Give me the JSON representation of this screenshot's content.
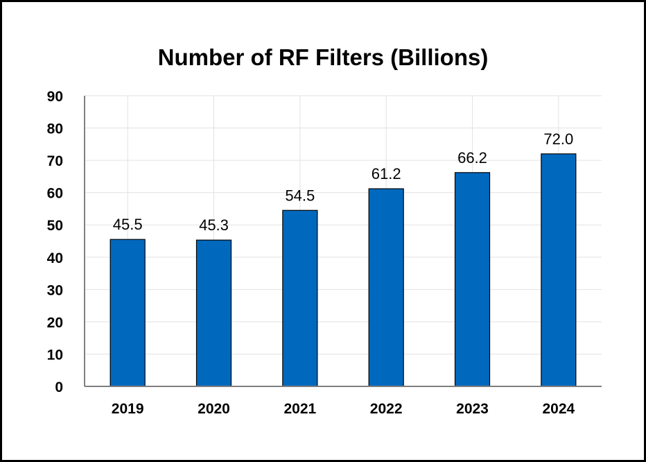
{
  "chart_data": {
    "type": "bar",
    "title": "Number of RF Filters (Billions)",
    "xlabel": "",
    "ylabel": "",
    "categories": [
      "2019",
      "2020",
      "2021",
      "2022",
      "2023",
      "2024"
    ],
    "values": [
      45.5,
      45.3,
      54.5,
      61.2,
      66.2,
      72.0
    ],
    "data_labels": [
      "45.5",
      "45.3",
      "54.5",
      "61.2",
      "66.2",
      "72.0"
    ],
    "ylim": [
      0,
      90
    ],
    "yticks": [
      0,
      10,
      20,
      30,
      40,
      50,
      60,
      70,
      80,
      90
    ],
    "grid": true,
    "legend": "none",
    "bar_color": "#0069be"
  }
}
